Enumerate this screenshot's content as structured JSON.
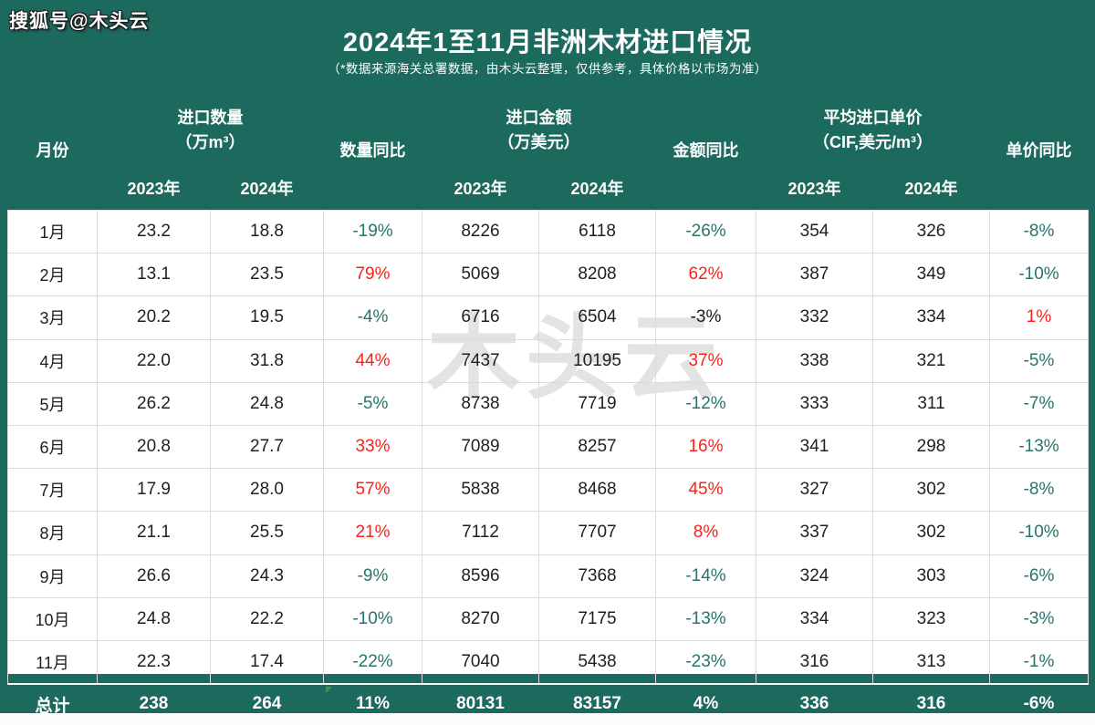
{
  "page": {
    "brand_watermark": "搜狐号@木头云",
    "center_watermark": "木头云"
  },
  "header": {
    "title": "2024年1至11月非洲木材进口情况",
    "subtitle": "（*数据来源海关总署数据，由木头云整理，仅供参考，具体价格以市场为准）"
  },
  "colors": {
    "header_green": "#1c695d",
    "yoy_negative_teal": "#26756c",
    "yoy_positive_red": "#f8221a",
    "body_text": "#1f1f1f",
    "gridline": "#dcdcdc",
    "watermark_gray": "#e3e3e3"
  },
  "table": {
    "col_month": "月份",
    "groups": [
      {
        "line1": "进口数量",
        "line2": "（万m³）"
      },
      {
        "line1": "进口金额",
        "line2": "（万美元）"
      },
      {
        "line1": "平均进口单价",
        "line2": "（CIF,美元/m³）"
      }
    ],
    "yoy_headers": [
      "数量同比",
      "金额同比",
      "单价同比"
    ],
    "year_headers": [
      "2023年",
      "2024年"
    ],
    "rows": [
      {
        "month": "1月",
        "cells": [
          "23.2",
          "18.8",
          "-19%",
          "8226",
          "6118",
          "-26%",
          "354",
          "326",
          "-8%"
        ],
        "yoy_colors": [
          "teal",
          "teal",
          "teal"
        ]
      },
      {
        "month": "2月",
        "cells": [
          "13.1",
          "23.5",
          "79%",
          "5069",
          "8208",
          "62%",
          "387",
          "349",
          "-10%"
        ],
        "yoy_colors": [
          "red",
          "red",
          "teal"
        ]
      },
      {
        "month": "3月",
        "cells": [
          "20.2",
          "19.5",
          "-4%",
          "6716",
          "6504",
          "-3%",
          "332",
          "334",
          "1%"
        ],
        "yoy_colors": [
          "teal",
          "dark",
          "red"
        ]
      },
      {
        "month": "4月",
        "cells": [
          "22.0",
          "31.8",
          "44%",
          "7437",
          "10195",
          "37%",
          "338",
          "321",
          "-5%"
        ],
        "yoy_colors": [
          "red",
          "red",
          "teal"
        ]
      },
      {
        "month": "5月",
        "cells": [
          "26.2",
          "24.8",
          "-5%",
          "8738",
          "7719",
          "-12%",
          "333",
          "311",
          "-7%"
        ],
        "yoy_colors": [
          "teal",
          "teal",
          "teal"
        ]
      },
      {
        "month": "6月",
        "cells": [
          "20.8",
          "27.7",
          "33%",
          "7089",
          "8257",
          "16%",
          "341",
          "298",
          "-13%"
        ],
        "yoy_colors": [
          "red",
          "red",
          "teal"
        ]
      },
      {
        "month": "7月",
        "cells": [
          "17.9",
          "28.0",
          "57%",
          "5838",
          "8468",
          "45%",
          "327",
          "302",
          "-8%"
        ],
        "yoy_colors": [
          "red",
          "red",
          "teal"
        ]
      },
      {
        "month": "8月",
        "cells": [
          "21.1",
          "25.5",
          "21%",
          "7112",
          "7707",
          "8%",
          "337",
          "302",
          "-10%"
        ],
        "yoy_colors": [
          "red",
          "red",
          "teal"
        ]
      },
      {
        "month": "9月",
        "cells": [
          "26.6",
          "24.3",
          "-9%",
          "8596",
          "7368",
          "-14%",
          "324",
          "303",
          "-6%"
        ],
        "yoy_colors": [
          "teal",
          "teal",
          "teal"
        ]
      },
      {
        "month": "10月",
        "cells": [
          "24.8",
          "22.2",
          "-10%",
          "8270",
          "7175",
          "-13%",
          "334",
          "323",
          "-3%"
        ],
        "yoy_colors": [
          "teal",
          "teal",
          "teal"
        ]
      },
      {
        "month": "11月",
        "cells": [
          "22.3",
          "17.4",
          "-22%",
          "7040",
          "5438",
          "-23%",
          "316",
          "313",
          "-1%"
        ],
        "yoy_colors": [
          "teal",
          "teal",
          "teal"
        ]
      }
    ],
    "total": {
      "month": "总计",
      "cells": [
        "238",
        "264",
        "11%",
        "80131",
        "83157",
        "4%",
        "336",
        "316",
        "-6%"
      ],
      "flag_col": 2
    }
  },
  "chart_data": {
    "type": "table",
    "title": "2024年1至11月非洲木材进口情况",
    "subtitle": "（*数据来源海关总署数据，由木头云整理，仅供参考，具体价格以市场为准）",
    "columns": [
      "月份",
      "进口数量2023年(万m³)",
      "进口数量2024年(万m³)",
      "数量同比",
      "进口金额2023年(万美元)",
      "进口金额2024年(万美元)",
      "金额同比",
      "平均进口单价2023年(CIF,美元/m³)",
      "平均进口单价2024年(CIF,美元/m³)",
      "单价同比"
    ],
    "rows": [
      [
        "1月",
        23.2,
        18.8,
        "-19%",
        8226,
        6118,
        "-26%",
        354,
        326,
        "-8%"
      ],
      [
        "2月",
        13.1,
        23.5,
        "79%",
        5069,
        8208,
        "62%",
        387,
        349,
        "-10%"
      ],
      [
        "3月",
        20.2,
        19.5,
        "-4%",
        6716,
        6504,
        "-3%",
        332,
        334,
        "1%"
      ],
      [
        "4月",
        22.0,
        31.8,
        "44%",
        7437,
        10195,
        "37%",
        338,
        321,
        "-5%"
      ],
      [
        "5月",
        26.2,
        24.8,
        "-5%",
        8738,
        7719,
        "-12%",
        333,
        311,
        "-7%"
      ],
      [
        "6月",
        20.8,
        27.7,
        "33%",
        7089,
        8257,
        "16%",
        341,
        298,
        "-13%"
      ],
      [
        "7月",
        17.9,
        28.0,
        "57%",
        5838,
        8468,
        "45%",
        327,
        302,
        "-8%"
      ],
      [
        "8月",
        21.1,
        25.5,
        "21%",
        7112,
        7707,
        "8%",
        337,
        302,
        "-10%"
      ],
      [
        "9月",
        26.6,
        24.3,
        "-9%",
        8596,
        7368,
        "-14%",
        324,
        303,
        "-6%"
      ],
      [
        "10月",
        24.8,
        22.2,
        "-10%",
        8270,
        7175,
        "-13%",
        334,
        323,
        "-3%"
      ],
      [
        "11月",
        22.3,
        17.4,
        "-22%",
        7040,
        5438,
        "-23%",
        316,
        313,
        "-1%"
      ],
      [
        "总计",
        238,
        264,
        "11%",
        80131,
        83157,
        "4%",
        336,
        316,
        "-6%"
      ]
    ]
  }
}
